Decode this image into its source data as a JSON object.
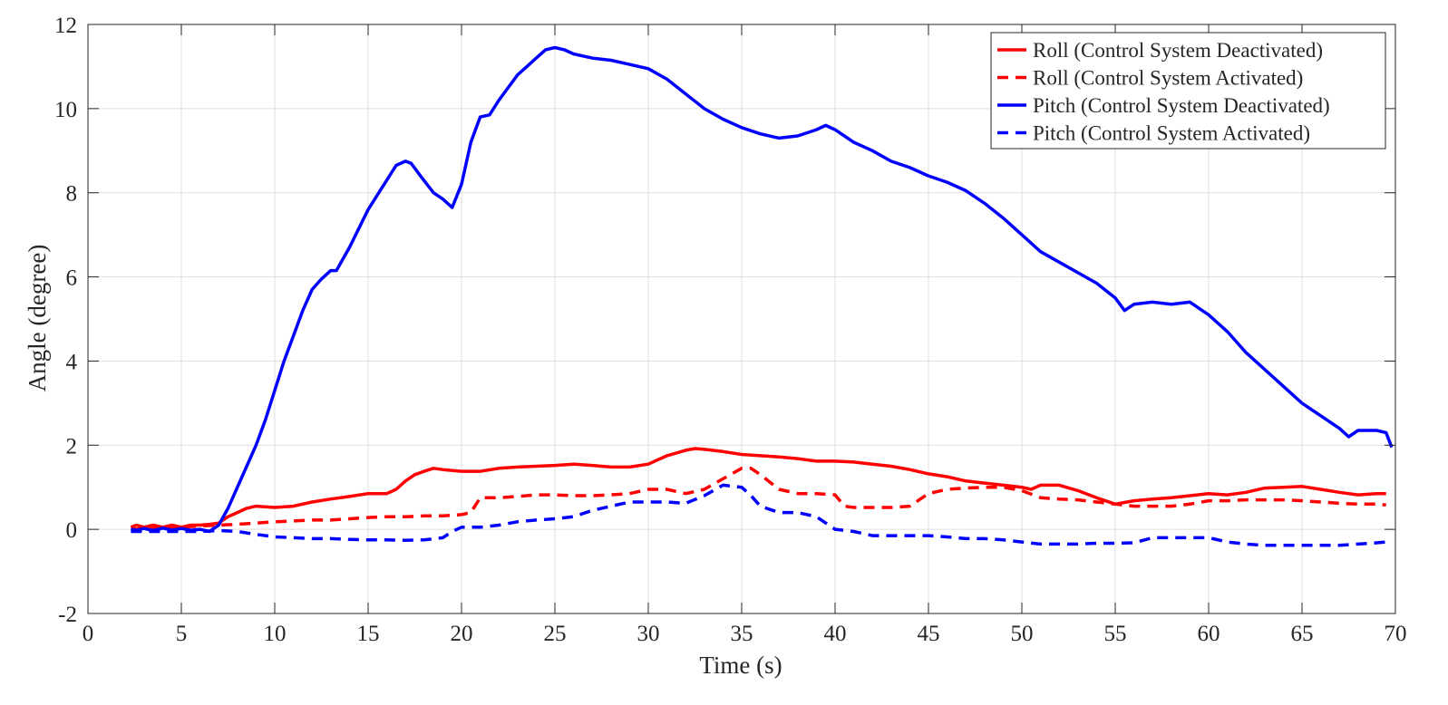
{
  "chart_data": {
    "type": "line",
    "xlabel": "Time (s)",
    "ylabel": "Angle (degree)",
    "xlim": [
      0,
      70
    ],
    "ylim": [
      -2,
      12
    ],
    "xticks": [
      0,
      5,
      10,
      15,
      20,
      25,
      30,
      35,
      40,
      45,
      50,
      55,
      60,
      65,
      70
    ],
    "yticks": [
      -2,
      0,
      2,
      4,
      6,
      8,
      10,
      12
    ],
    "grid": true,
    "legend_position": "top-right",
    "series": [
      {
        "name": "Roll (Control System Deactivated)",
        "color": "#ff0000",
        "style": "solid",
        "points": [
          [
            2.3,
            0.05
          ],
          [
            2.6,
            0.1
          ],
          [
            3,
            0.05
          ],
          [
            3.5,
            0.1
          ],
          [
            4,
            0.05
          ],
          [
            4.5,
            0.1
          ],
          [
            5,
            0.05
          ],
          [
            5.5,
            0.1
          ],
          [
            6,
            0.1
          ],
          [
            6.5,
            0.12
          ],
          [
            7,
            0.15
          ],
          [
            7.5,
            0.3
          ],
          [
            8,
            0.4
          ],
          [
            8.5,
            0.5
          ],
          [
            9,
            0.55
          ],
          [
            10,
            0.52
          ],
          [
            11,
            0.55
          ],
          [
            12,
            0.65
          ],
          [
            13,
            0.72
          ],
          [
            14,
            0.78
          ],
          [
            15,
            0.85
          ],
          [
            16,
            0.85
          ],
          [
            16.5,
            0.95
          ],
          [
            17,
            1.15
          ],
          [
            17.5,
            1.3
          ],
          [
            18,
            1.38
          ],
          [
            18.5,
            1.45
          ],
          [
            19,
            1.42
          ],
          [
            20,
            1.38
          ],
          [
            21,
            1.38
          ],
          [
            22,
            1.45
          ],
          [
            23,
            1.48
          ],
          [
            24,
            1.5
          ],
          [
            25,
            1.52
          ],
          [
            26,
            1.55
          ],
          [
            27,
            1.52
          ],
          [
            28,
            1.48
          ],
          [
            29,
            1.48
          ],
          [
            30,
            1.55
          ],
          [
            31,
            1.75
          ],
          [
            32,
            1.88
          ],
          [
            32.5,
            1.92
          ],
          [
            33,
            1.9
          ],
          [
            34,
            1.85
          ],
          [
            35,
            1.78
          ],
          [
            36,
            1.75
          ],
          [
            37,
            1.72
          ],
          [
            38,
            1.68
          ],
          [
            39,
            1.62
          ],
          [
            40,
            1.62
          ],
          [
            41,
            1.6
          ],
          [
            42,
            1.55
          ],
          [
            43,
            1.5
          ],
          [
            44,
            1.42
          ],
          [
            45,
            1.32
          ],
          [
            46,
            1.25
          ],
          [
            47,
            1.15
          ],
          [
            48,
            1.1
          ],
          [
            49,
            1.05
          ],
          [
            50,
            1.0
          ],
          [
            50.5,
            0.95
          ],
          [
            51,
            1.05
          ],
          [
            52,
            1.05
          ],
          [
            53,
            0.92
          ],
          [
            54,
            0.75
          ],
          [
            55,
            0.6
          ],
          [
            56,
            0.68
          ],
          [
            57,
            0.72
          ],
          [
            58,
            0.75
          ],
          [
            59,
            0.8
          ],
          [
            60,
            0.85
          ],
          [
            61,
            0.82
          ],
          [
            62,
            0.88
          ],
          [
            63,
            0.98
          ],
          [
            64,
            1.0
          ],
          [
            65,
            1.02
          ],
          [
            66,
            0.95
          ],
          [
            67,
            0.88
          ],
          [
            68,
            0.82
          ],
          [
            69,
            0.85
          ],
          [
            69.5,
            0.85
          ]
        ]
      },
      {
        "name": "Roll (Control System Activated)",
        "color": "#ff0000",
        "style": "dashed",
        "points": [
          [
            2.3,
            0.0
          ],
          [
            3,
            0.02
          ],
          [
            4,
            0.03
          ],
          [
            5,
            0.05
          ],
          [
            6,
            0.08
          ],
          [
            7,
            0.1
          ],
          [
            8,
            0.12
          ],
          [
            9,
            0.15
          ],
          [
            10,
            0.18
          ],
          [
            11,
            0.2
          ],
          [
            12,
            0.22
          ],
          [
            13,
            0.22
          ],
          [
            14,
            0.25
          ],
          [
            15,
            0.28
          ],
          [
            16,
            0.3
          ],
          [
            17,
            0.3
          ],
          [
            18,
            0.32
          ],
          [
            19,
            0.32
          ],
          [
            20,
            0.35
          ],
          [
            20.5,
            0.4
          ],
          [
            21,
            0.75
          ],
          [
            22,
            0.75
          ],
          [
            23,
            0.78
          ],
          [
            24,
            0.82
          ],
          [
            25,
            0.82
          ],
          [
            26,
            0.8
          ],
          [
            27,
            0.8
          ],
          [
            28,
            0.82
          ],
          [
            29,
            0.85
          ],
          [
            30,
            0.95
          ],
          [
            31,
            0.95
          ],
          [
            32,
            0.85
          ],
          [
            33,
            0.95
          ],
          [
            34,
            1.2
          ],
          [
            35,
            1.45
          ],
          [
            35.5,
            1.45
          ],
          [
            36,
            1.3
          ],
          [
            37,
            0.95
          ],
          [
            38,
            0.85
          ],
          [
            39,
            0.85
          ],
          [
            40,
            0.82
          ],
          [
            40.5,
            0.55
          ],
          [
            41,
            0.52
          ],
          [
            42,
            0.52
          ],
          [
            43,
            0.52
          ],
          [
            44,
            0.55
          ],
          [
            45,
            0.85
          ],
          [
            46,
            0.95
          ],
          [
            47,
            0.98
          ],
          [
            48,
            1.0
          ],
          [
            49,
            1.0
          ],
          [
            50,
            0.92
          ],
          [
            51,
            0.75
          ],
          [
            52,
            0.72
          ],
          [
            53,
            0.7
          ],
          [
            54,
            0.65
          ],
          [
            55,
            0.6
          ],
          [
            56,
            0.55
          ],
          [
            57,
            0.55
          ],
          [
            58,
            0.55
          ],
          [
            59,
            0.6
          ],
          [
            60,
            0.68
          ],
          [
            61,
            0.68
          ],
          [
            62,
            0.7
          ],
          [
            63,
            0.7
          ],
          [
            64,
            0.7
          ],
          [
            65,
            0.68
          ],
          [
            66,
            0.65
          ],
          [
            67,
            0.62
          ],
          [
            68,
            0.6
          ],
          [
            69,
            0.6
          ],
          [
            69.5,
            0.58
          ]
        ]
      },
      {
        "name": "Pitch (Control System Deactivated)",
        "color": "#0000ff",
        "style": "solid",
        "points": [
          [
            2.3,
            0.0
          ],
          [
            2.6,
            -0.02
          ],
          [
            3,
            0.02
          ],
          [
            3.5,
            -0.03
          ],
          [
            4,
            0.03
          ],
          [
            4.5,
            -0.02
          ],
          [
            5,
            0.02
          ],
          [
            5.5,
            -0.02
          ],
          [
            6,
            0.0
          ],
          [
            6.5,
            -0.05
          ],
          [
            7,
            0.1
          ],
          [
            7.5,
            0.5
          ],
          [
            8,
            1.0
          ],
          [
            8.5,
            1.5
          ],
          [
            9,
            2.0
          ],
          [
            9.5,
            2.6
          ],
          [
            10,
            3.3
          ],
          [
            10.5,
            4.0
          ],
          [
            11,
            4.6
          ],
          [
            11.5,
            5.2
          ],
          [
            12,
            5.7
          ],
          [
            12.5,
            5.95
          ],
          [
            13,
            6.15
          ],
          [
            13.3,
            6.15
          ],
          [
            14,
            6.7
          ],
          [
            15,
            7.6
          ],
          [
            16,
            8.3
          ],
          [
            16.5,
            8.65
          ],
          [
            17,
            8.75
          ],
          [
            17.3,
            8.7
          ],
          [
            17.8,
            8.4
          ],
          [
            18.5,
            8.0
          ],
          [
            19,
            7.85
          ],
          [
            19.5,
            7.65
          ],
          [
            20,
            8.2
          ],
          [
            20.5,
            9.2
          ],
          [
            21,
            9.8
          ],
          [
            21.5,
            9.85
          ],
          [
            22,
            10.2
          ],
          [
            22.5,
            10.5
          ],
          [
            23,
            10.8
          ],
          [
            23.5,
            11.0
          ],
          [
            24,
            11.2
          ],
          [
            24.5,
            11.4
          ],
          [
            25,
            11.45
          ],
          [
            25.5,
            11.4
          ],
          [
            26,
            11.3
          ],
          [
            27,
            11.2
          ],
          [
            28,
            11.15
          ],
          [
            29,
            11.05
          ],
          [
            30,
            10.95
          ],
          [
            31,
            10.7
          ],
          [
            32,
            10.35
          ],
          [
            33,
            10.0
          ],
          [
            34,
            9.75
          ],
          [
            35,
            9.55
          ],
          [
            36,
            9.4
          ],
          [
            37,
            9.3
          ],
          [
            38,
            9.35
          ],
          [
            39,
            9.5
          ],
          [
            39.5,
            9.6
          ],
          [
            40,
            9.5
          ],
          [
            41,
            9.2
          ],
          [
            42,
            9.0
          ],
          [
            43,
            8.75
          ],
          [
            44,
            8.6
          ],
          [
            45,
            8.4
          ],
          [
            46,
            8.25
          ],
          [
            47,
            8.05
          ],
          [
            48,
            7.75
          ],
          [
            49,
            7.4
          ],
          [
            50,
            7.0
          ],
          [
            51,
            6.6
          ],
          [
            52,
            6.35
          ],
          [
            53,
            6.1
          ],
          [
            54,
            5.85
          ],
          [
            55,
            5.5
          ],
          [
            55.5,
            5.2
          ],
          [
            56,
            5.35
          ],
          [
            57,
            5.4
          ],
          [
            58,
            5.35
          ],
          [
            59,
            5.4
          ],
          [
            60,
            5.1
          ],
          [
            61,
            4.7
          ],
          [
            62,
            4.2
          ],
          [
            63,
            3.8
          ],
          [
            64,
            3.4
          ],
          [
            65,
            3.0
          ],
          [
            66,
            2.7
          ],
          [
            67,
            2.4
          ],
          [
            67.5,
            2.2
          ],
          [
            68,
            2.35
          ],
          [
            69,
            2.35
          ],
          [
            69.5,
            2.3
          ],
          [
            69.8,
            1.95
          ]
        ]
      },
      {
        "name": "Pitch (Control System Activated)",
        "color": "#0000ff",
        "style": "dashed",
        "points": [
          [
            2.3,
            -0.05
          ],
          [
            3,
            -0.05
          ],
          [
            4,
            -0.05
          ],
          [
            5,
            -0.05
          ],
          [
            6,
            -0.05
          ],
          [
            7,
            -0.03
          ],
          [
            8,
            -0.05
          ],
          [
            9,
            -0.12
          ],
          [
            10,
            -0.18
          ],
          [
            11,
            -0.2
          ],
          [
            12,
            -0.22
          ],
          [
            13,
            -0.22
          ],
          [
            14,
            -0.24
          ],
          [
            15,
            -0.25
          ],
          [
            16,
            -0.25
          ],
          [
            17,
            -0.26
          ],
          [
            18,
            -0.25
          ],
          [
            19,
            -0.2
          ],
          [
            19.5,
            -0.05
          ],
          [
            20,
            0.05
          ],
          [
            21,
            0.05
          ],
          [
            22,
            0.1
          ],
          [
            23,
            0.18
          ],
          [
            24,
            0.22
          ],
          [
            25,
            0.25
          ],
          [
            26,
            0.3
          ],
          [
            27,
            0.45
          ],
          [
            28,
            0.55
          ],
          [
            29,
            0.65
          ],
          [
            30,
            0.65
          ],
          [
            31,
            0.65
          ],
          [
            32,
            0.62
          ],
          [
            33,
            0.8
          ],
          [
            34,
            1.05
          ],
          [
            35,
            1.0
          ],
          [
            35.5,
            0.8
          ],
          [
            36,
            0.55
          ],
          [
            37,
            0.4
          ],
          [
            38,
            0.4
          ],
          [
            39,
            0.3
          ],
          [
            40,
            0.0
          ],
          [
            41,
            -0.05
          ],
          [
            42,
            -0.15
          ],
          [
            43,
            -0.15
          ],
          [
            44,
            -0.15
          ],
          [
            45,
            -0.15
          ],
          [
            46,
            -0.18
          ],
          [
            47,
            -0.22
          ],
          [
            48,
            -0.22
          ],
          [
            49,
            -0.25
          ],
          [
            50,
            -0.3
          ],
          [
            51,
            -0.35
          ],
          [
            52,
            -0.35
          ],
          [
            53,
            -0.35
          ],
          [
            54,
            -0.33
          ],
          [
            55,
            -0.33
          ],
          [
            56,
            -0.32
          ],
          [
            57,
            -0.2
          ],
          [
            58,
            -0.2
          ],
          [
            59,
            -0.2
          ],
          [
            60,
            -0.2
          ],
          [
            61,
            -0.3
          ],
          [
            62,
            -0.35
          ],
          [
            63,
            -0.38
          ],
          [
            64,
            -0.38
          ],
          [
            65,
            -0.38
          ],
          [
            66,
            -0.38
          ],
          [
            67,
            -0.38
          ],
          [
            68,
            -0.35
          ],
          [
            69,
            -0.32
          ],
          [
            69.5,
            -0.3
          ]
        ]
      }
    ]
  }
}
